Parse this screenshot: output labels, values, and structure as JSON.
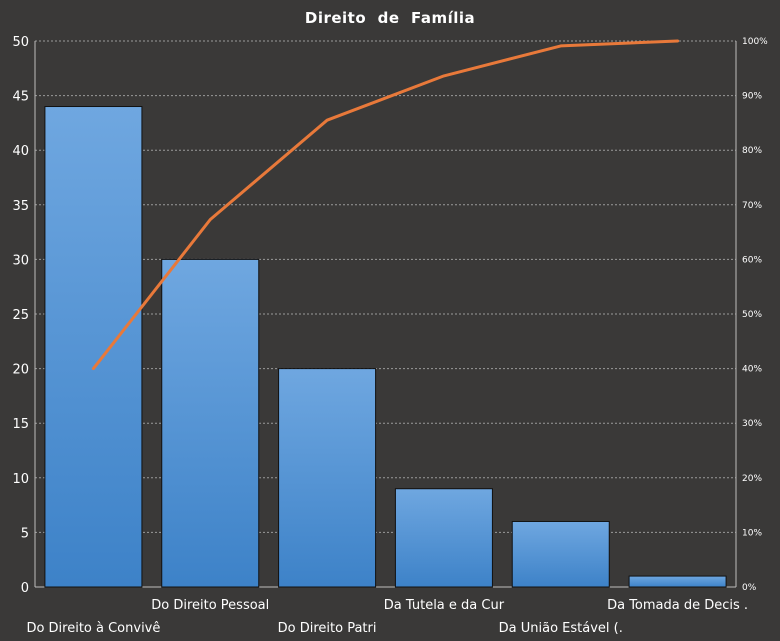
{
  "chart_data": {
    "type": "bar",
    "title": "Direito  de  Família",
    "categories": [
      "Do Direito à Convivê",
      "Do Direito Pessoal",
      "Do Direito Patri",
      "Da Tutela e da Cur",
      "Da União Estável (.",
      "Da Tomada de Decis ."
    ],
    "series": [
      {
        "values": [
          44,
          30,
          20,
          9,
          6,
          1
        ]
      }
    ],
    "cumulative_line": {
      "values": [
        40,
        67.3,
        85.5,
        93.6,
        99.1,
        100
      ]
    },
    "ylim": [
      0,
      50
    ],
    "yticks": [
      "0",
      "5",
      "10",
      "15",
      "20",
      "25",
      "30",
      "35",
      "40",
      "45",
      "50"
    ],
    "y2lim": [
      0,
      100
    ],
    "y2ticks": [
      "0%",
      "10%",
      "20%",
      "30%",
      "40%",
      "50%",
      "60%",
      "70%",
      "80%",
      "90%",
      "100%"
    ],
    "grid": true,
    "colors": {
      "background": "#3a3938",
      "bar_top": "#6fa7e0",
      "bar_bottom": "#3d82c8",
      "line": "#e8793a"
    }
  }
}
